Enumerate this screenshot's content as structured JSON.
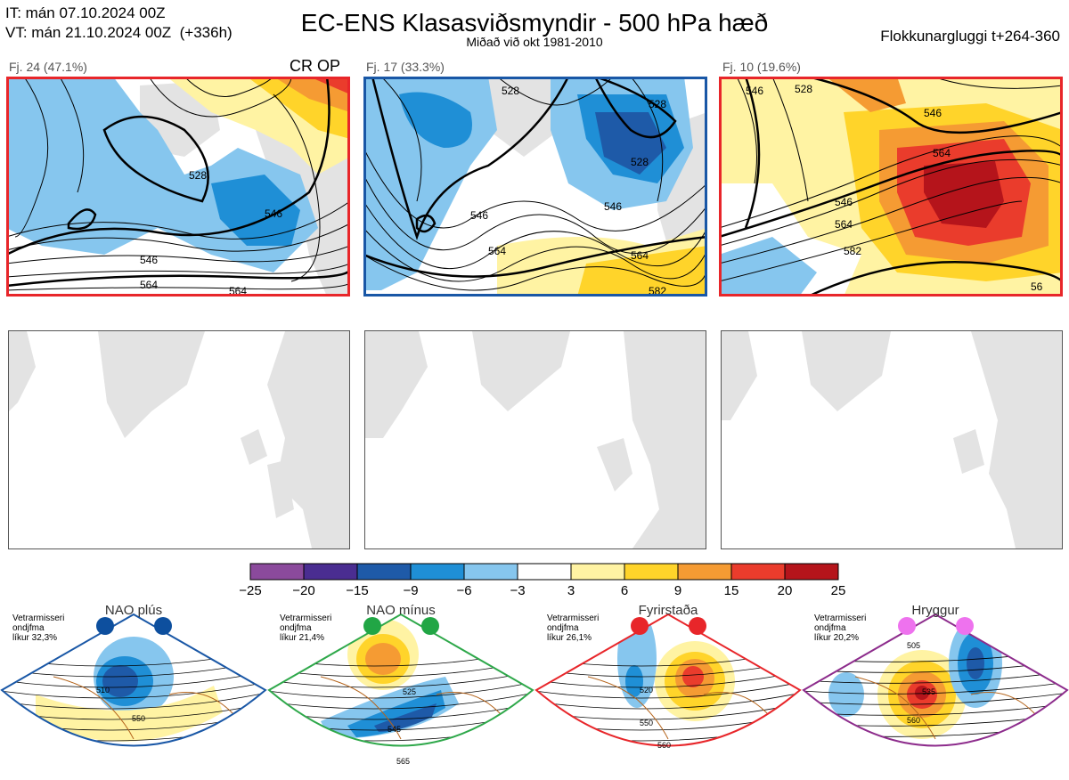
{
  "header": {
    "it_line": "IT: mán 07.10.2024 00Z",
    "vt_line": "VT: mán 21.10.2024 00Z  (+336h)",
    "title": "EC-ENS Klasasviðsmyndir - 500 hPa hæð",
    "subtitle": "Miðað við okt 1981-2010",
    "window": "Flokkunargluggi t+264-360"
  },
  "clusters": [
    {
      "label": "Fj. 24 (47.1%)",
      "tag": "CR OP",
      "border_color": "#e8262a",
      "contours": [
        "528",
        "546",
        "546",
        "564",
        "564"
      ]
    },
    {
      "label": "Fj. 17 (33.3%)",
      "tag": "",
      "border_color": "#1957a6",
      "contours": [
        "528",
        "528",
        "528",
        "546",
        "546",
        "564",
        "564",
        "582"
      ]
    },
    {
      "label": "Fj. 10 (19.6%)",
      "tag": "",
      "border_color": "#e8262a",
      "contours": [
        "546",
        "528",
        "546",
        "564",
        "546",
        "564",
        "582",
        "56"
      ]
    }
  ],
  "colorbar": {
    "ticks": [
      "−25",
      "−20",
      "−15",
      "−9",
      "−6",
      "−3",
      "3",
      "6",
      "9",
      "15",
      "20",
      "25"
    ],
    "colors": [
      "#8b4a9c",
      "#4a2d91",
      "#1e5aa8",
      "#1f8fd6",
      "#86c6ee",
      "#ffffff",
      "#fff3a3",
      "#ffd42a",
      "#f59b33",
      "#ea3c2c",
      "#b5141b"
    ]
  },
  "regimes": [
    {
      "name": "NAO plús",
      "note": "Vetrarmisseri\nondjfma\nlíkur 32,3%",
      "color": "#1957a6",
      "dot_color": "#0d4f9e",
      "labels": [
        "510",
        "550"
      ]
    },
    {
      "name": "NAO mínus",
      "note": "Vetrarmisseri\nondjfma\nlíkur 21,4%",
      "color": "#2ea84a",
      "dot_color": "#21a645",
      "labels": [
        "525",
        "545",
        "565"
      ]
    },
    {
      "name": "Fyrirstaða",
      "note": "Vetrarmisseri\nondjfma\nlíkur 26,1%",
      "color": "#e8262a",
      "dot_color": "#e8262a",
      "labels": [
        "520",
        "550",
        "560"
      ]
    },
    {
      "name": "Hryggur",
      "note": "Vetrarmisseri\nondjfma\nlíkur 20,2%",
      "color": "#8d2c8c",
      "dot_color": "#ee72ee",
      "labels": [
        "505",
        "535",
        "560"
      ]
    }
  ]
}
